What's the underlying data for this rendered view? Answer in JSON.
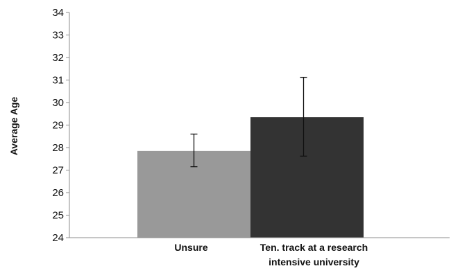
{
  "chart_data": {
    "type": "bar",
    "title": "",
    "xlabel": "",
    "ylabel": "Average Age",
    "ylim": [
      24,
      34
    ],
    "yticks": [
      24,
      25,
      26,
      27,
      28,
      29,
      30,
      31,
      32,
      33,
      34
    ],
    "grid": false,
    "legend": "none",
    "categories": [
      [
        "Unsure"
      ],
      [
        "Ten. track at a research",
        "intensive university"
      ]
    ],
    "values": [
      27.85,
      29.35
    ],
    "error_low": [
      27.15,
      27.62
    ],
    "error_high": [
      28.6,
      31.12
    ],
    "colors": [
      "#999999",
      "#333333"
    ]
  }
}
